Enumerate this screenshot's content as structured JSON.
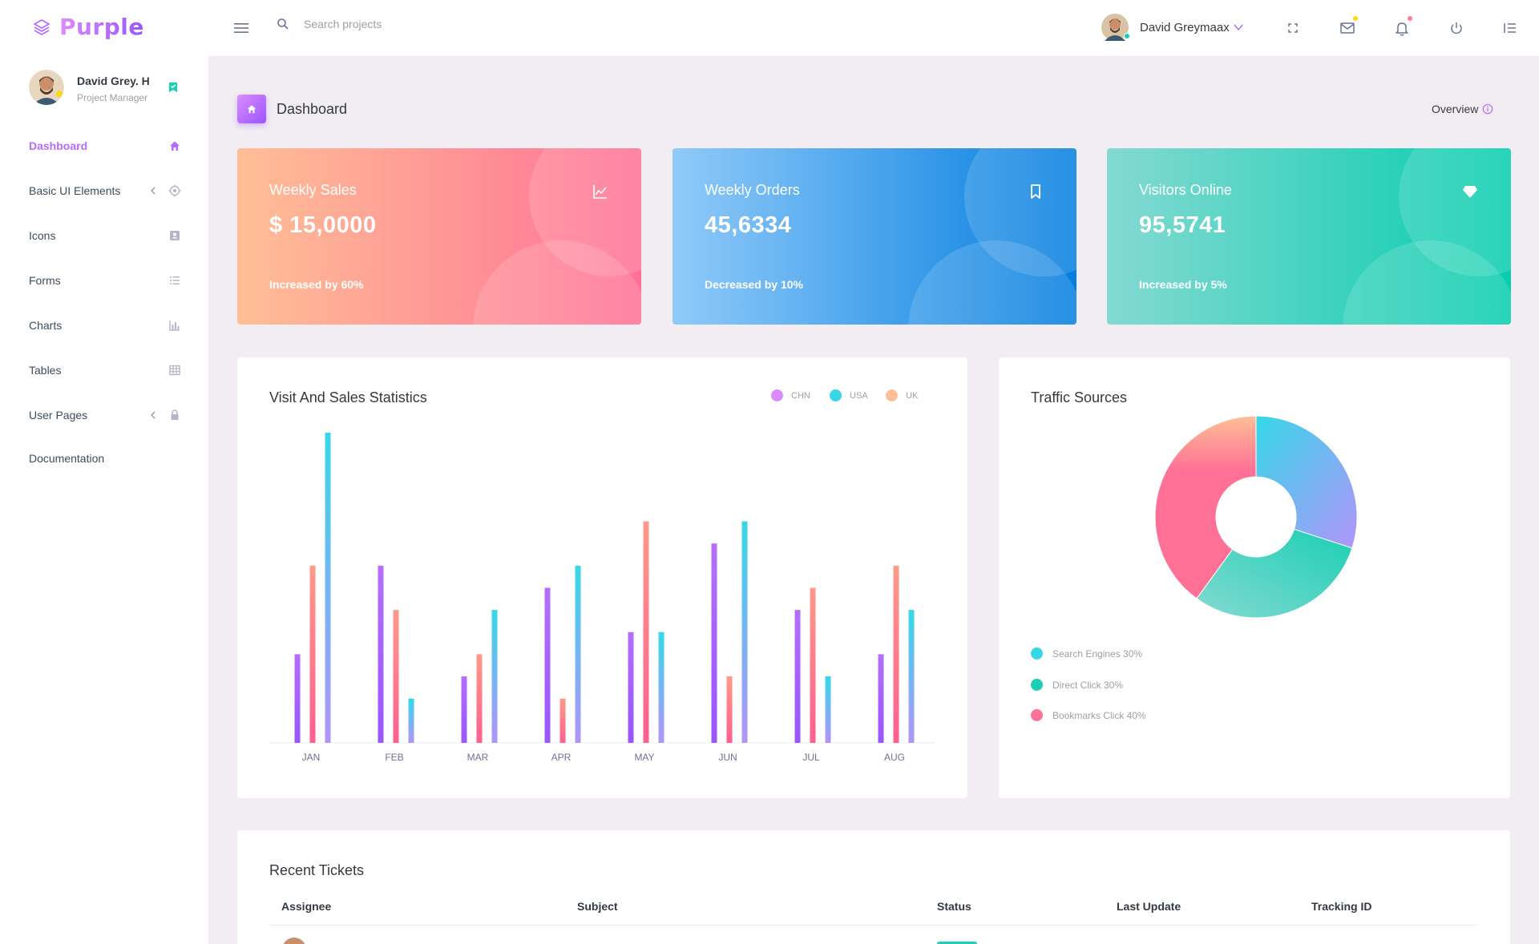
{
  "brand": {
    "name": "Purple"
  },
  "search": {
    "placeholder": "Search projects"
  },
  "navbar": {
    "user_name": "David Greymaax",
    "icons": [
      "fullscreen-icon",
      "mail-icon",
      "bell-icon",
      "power-icon",
      "menu-right-icon"
    ],
    "mail_dot_color": "#fed713",
    "bell_dot_color": "#fe7c96"
  },
  "sidebar": {
    "profile": {
      "name": "David Grey. H",
      "role": "Project Manager"
    },
    "items": [
      {
        "label": "Dashboard",
        "icon": "home-icon",
        "active": true
      },
      {
        "label": "Basic UI Elements",
        "icon": "crosshairs-icon",
        "has_arrow": true
      },
      {
        "label": "Icons",
        "icon": "contacts-icon"
      },
      {
        "label": "Forms",
        "icon": "format-list-icon"
      },
      {
        "label": "Charts",
        "icon": "chart-bar-icon"
      },
      {
        "label": "Tables",
        "icon": "table-icon"
      },
      {
        "label": "User Pages",
        "icon": "lock-icon",
        "has_arrow": true
      },
      {
        "label": "Documentation",
        "icon": ""
      }
    ]
  },
  "page": {
    "title": "Dashboard",
    "overview_label": "Overview"
  },
  "stats": [
    {
      "title": "Weekly Sales",
      "value": "$ 15,0000",
      "sub": "Increased by 60%",
      "icon": "chart-line-icon"
    },
    {
      "title": "Weekly Orders",
      "value": "45,6334",
      "sub": "Decreased by 10%",
      "icon": "bookmark-icon"
    },
    {
      "title": "Visitors Online",
      "value": "95,5741",
      "sub": "Increased by 5%",
      "icon": "diamond-icon"
    }
  ],
  "colors": {
    "accent": "#b66dff",
    "sales_gradient": [
      "#ffbf96",
      "#fe7096"
    ],
    "orders_gradient": [
      "#90caf9",
      "#047edf"
    ],
    "visitors_gradient": [
      "#84d9d2",
      "#07cdae"
    ]
  },
  "visit_chart": {
    "title": "Visit And Sales Statistics",
    "chart_data": {
      "type": "bar",
      "categories": [
        "JAN",
        "FEB",
        "MAR",
        "APR",
        "MAY",
        "JUN",
        "JUL",
        "AUG"
      ],
      "series": [
        {
          "name": "CHN",
          "color": "#9a55ff",
          "values": [
            20,
            40,
            15,
            35,
            25,
            45,
            30,
            20
          ]
        },
        {
          "name": "USA",
          "color": "#fe7096",
          "values": [
            40,
            30,
            20,
            10,
            50,
            15,
            35,
            40
          ]
        },
        {
          "name": "UK",
          "color": "#6fa8f5",
          "values": [
            70,
            10,
            30,
            40,
            25,
            50,
            15,
            30
          ]
        }
      ],
      "legend": [
        "CHN",
        "USA",
        "UK"
      ],
      "legend_colors": [
        "#da8cff",
        "#36d7e8",
        "#ffbf96"
      ],
      "ylim": [
        0,
        70
      ],
      "grid": false
    }
  },
  "traffic": {
    "title": "Traffic Sources",
    "chart_data": {
      "type": "pie",
      "labels": [
        "Search Engines",
        "Direct Click",
        "Bookmarks Click"
      ],
      "values": [
        30,
        30,
        40
      ],
      "colors": [
        "#36d7e8",
        "#1bcfb4",
        "#fe7096"
      ]
    },
    "legend": [
      {
        "label": "Search Engines 30%",
        "color": "#36d7e8"
      },
      {
        "label": "Direct Click 30%",
        "color": "#1bcfb4"
      },
      {
        "label": "Bookmarks Click 40%",
        "color": "#fe7096"
      }
    ]
  },
  "tickets": {
    "title": "Recent Tickets",
    "columns": [
      "Assignee",
      "Subject",
      "Status",
      "Last Update",
      "Tracking ID"
    ]
  }
}
